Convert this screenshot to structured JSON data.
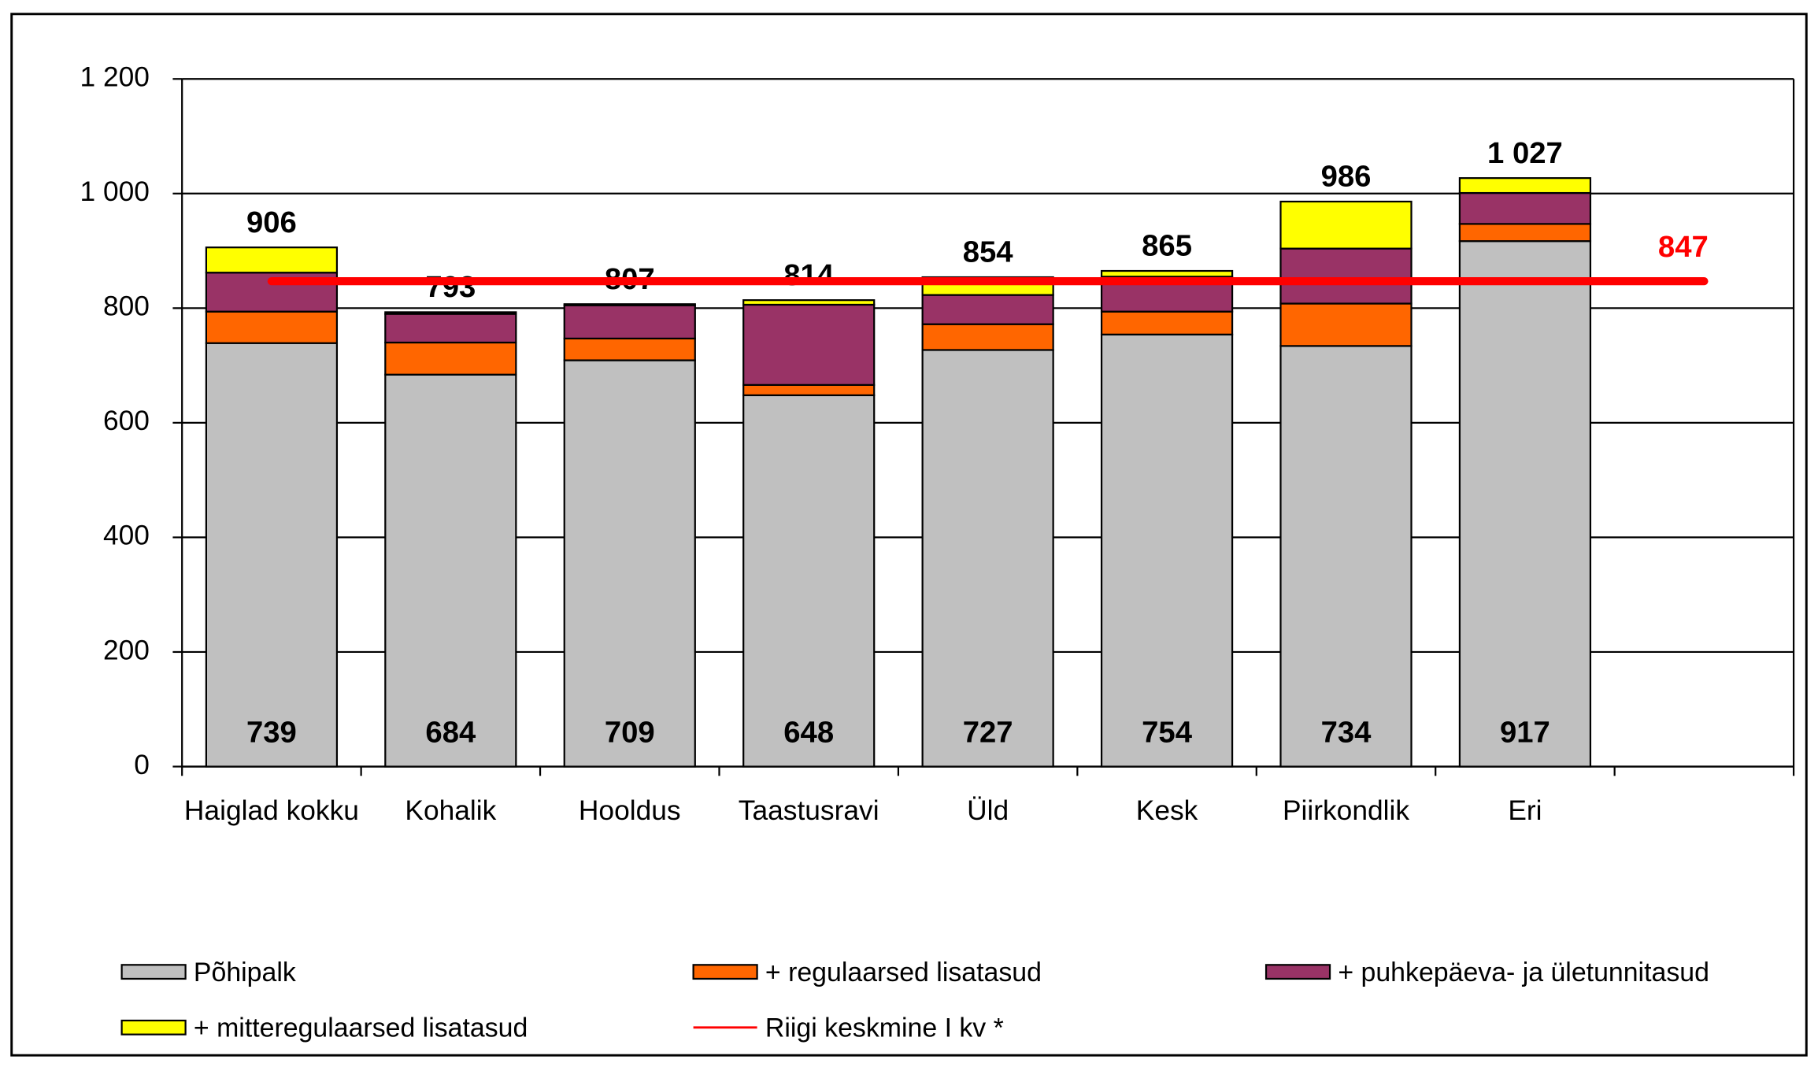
{
  "chart_data": {
    "type": "stacked_bar",
    "categories": [
      "Haiglad kokku",
      "Kohalik",
      "Hooldus",
      "Taastusravi",
      "Üld",
      "Kesk",
      "Piirkondlik",
      "Eri",
      null
    ],
    "series": [
      {
        "name": "Põhipalk",
        "color": "#c0c0c0",
        "values": [
          739,
          684,
          709,
          648,
          727,
          754,
          734,
          917,
          null
        ]
      },
      {
        "name": "+ regulaarsed lisatasud",
        "color": "#ff6600",
        "values": [
          55,
          56,
          38,
          18,
          45,
          40,
          74,
          30,
          null
        ]
      },
      {
        "name": "+ puhkepäeva- ja ületunnitasud",
        "color": "#993366",
        "values": [
          68,
          50,
          58,
          140,
          51,
          61,
          96,
          54,
          null
        ]
      },
      {
        "name": "+ mitteregulaarsed lisatasud",
        "color": "#ffff00",
        "values": [
          44,
          3,
          2,
          8,
          31,
          10,
          82,
          26,
          null
        ]
      },
      {
        "name": "Riigi keskmine I kv *",
        "color": "#ff0000",
        "type": "line",
        "values": [
          847,
          847,
          847,
          847,
          847,
          847,
          847,
          847,
          847
        ]
      }
    ],
    "totals": [
      906,
      793,
      807,
      814,
      854,
      865,
      986,
      1027,
      null
    ],
    "total_labels": [
      "906",
      "793",
      "807",
      "814",
      "854",
      "865",
      "986",
      "1 027",
      null
    ],
    "ylim": [
      0,
      1200
    ],
    "yticks": [
      0,
      200,
      400,
      600,
      800,
      {
        "value": 1000,
        "label": "1 000"
      },
      {
        "value": 1200,
        "label": "1 200"
      }
    ],
    "grid": true
  }
}
